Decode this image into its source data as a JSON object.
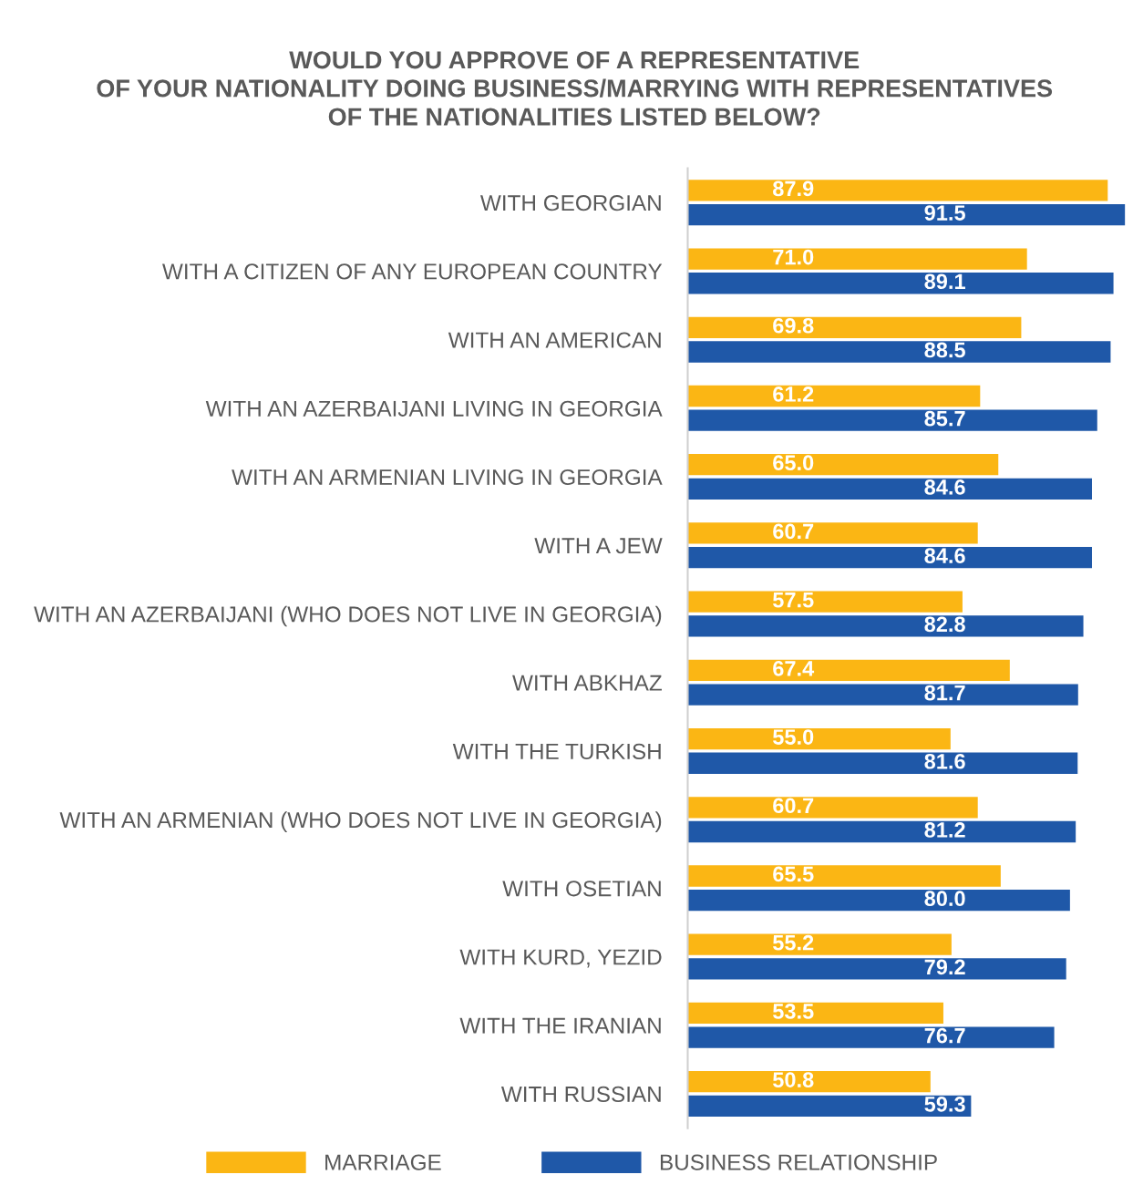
{
  "chart_data": {
    "type": "bar",
    "orientation": "horizontal",
    "title": "WOULD YOU APPROVE OF A REPRESENTATIVE\nOF YOUR NATIONALITY DOING BUSINESS/MARRYING WITH REPRESENTATIVES\nOF THE NATIONALITIES LISTED BELOW?",
    "categories": [
      "WITH GEORGIAN",
      "WITH A CITIZEN OF ANY EUROPEAN COUNTRY",
      "WITH AN AMERICAN",
      "WITH AN AZERBAIJANI LIVING IN GEORGIA",
      "WITH AN ARMENIAN LIVING IN GEORGIA",
      "WITH A JEW",
      "WITH AN AZERBAIJANI (WHO DOES NOT LIVE IN GEORGIA)",
      "WITH ABKHAZ",
      "WITH THE TURKISH",
      "WITH AN ARMENIAN (WHO DOES NOT LIVE IN GEORGIA)",
      "WITH OSETIAN",
      "WITH KURD, YEZID",
      "WITH THE IRANIAN",
      "WITH RUSSIAN"
    ],
    "series": [
      {
        "name": "MARRIAGE",
        "color": "#fbb614",
        "values": [
          87.9,
          71.0,
          69.8,
          61.2,
          65.0,
          60.7,
          57.5,
          67.4,
          55.0,
          60.7,
          65.5,
          55.2,
          53.5,
          50.8
        ],
        "value_labels": [
          "87.9",
          "71.0",
          "69.8",
          "61.2",
          "65.0",
          "60.7",
          "57.5",
          "67.4",
          "55.0",
          "60.7",
          "65.5",
          "55.2",
          "53.5",
          "50.8"
        ]
      },
      {
        "name": "BUSINESS RELATIONSHIP",
        "color": "#1f58a8",
        "values": [
          91.5,
          89.1,
          88.5,
          85.7,
          84.6,
          84.6,
          82.8,
          81.7,
          81.6,
          81.2,
          80.0,
          79.2,
          76.7,
          59.3
        ],
        "value_labels": [
          "91.5",
          "89.1",
          "88.5",
          "85.7",
          "84.6",
          "84.6",
          "82.8",
          "81.7",
          "81.6",
          "81.2",
          "80.0",
          "79.2",
          "76.7",
          "59.3"
        ]
      }
    ],
    "xlim": [
      0,
      92
    ],
    "tick_labels": "y",
    "grid": false,
    "legend": "bottom"
  }
}
